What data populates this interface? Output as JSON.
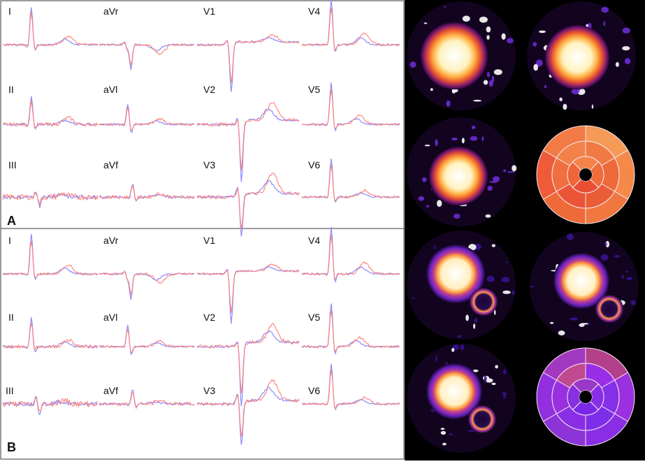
{
  "figure": {
    "panels": [
      {
        "letter": "A",
        "leads": [
          "I",
          "aVr",
          "V1",
          "V4",
          "II",
          "aVl",
          "V2",
          "V5",
          "III",
          "aVf",
          "V3",
          "V6"
        ]
      },
      {
        "letter": "B",
        "leads": [
          "I",
          "aVr",
          "V1",
          "V4",
          "II",
          "aVl",
          "V2",
          "V5",
          "III",
          "aVf",
          "V3",
          "V6"
        ]
      }
    ],
    "colors": {
      "trace_blue": "#8c8cff",
      "trace_red": "#ff7f78",
      "border": "#3a3a3a",
      "mri_background": "#000000",
      "hot_core": "#fff5c8",
      "hot_ring": "#f08a3a",
      "purple_ring": "#7b2cc4",
      "bullseye_a": "#f26a3c",
      "bullseye_b": "#8a2ee6"
    }
  }
}
